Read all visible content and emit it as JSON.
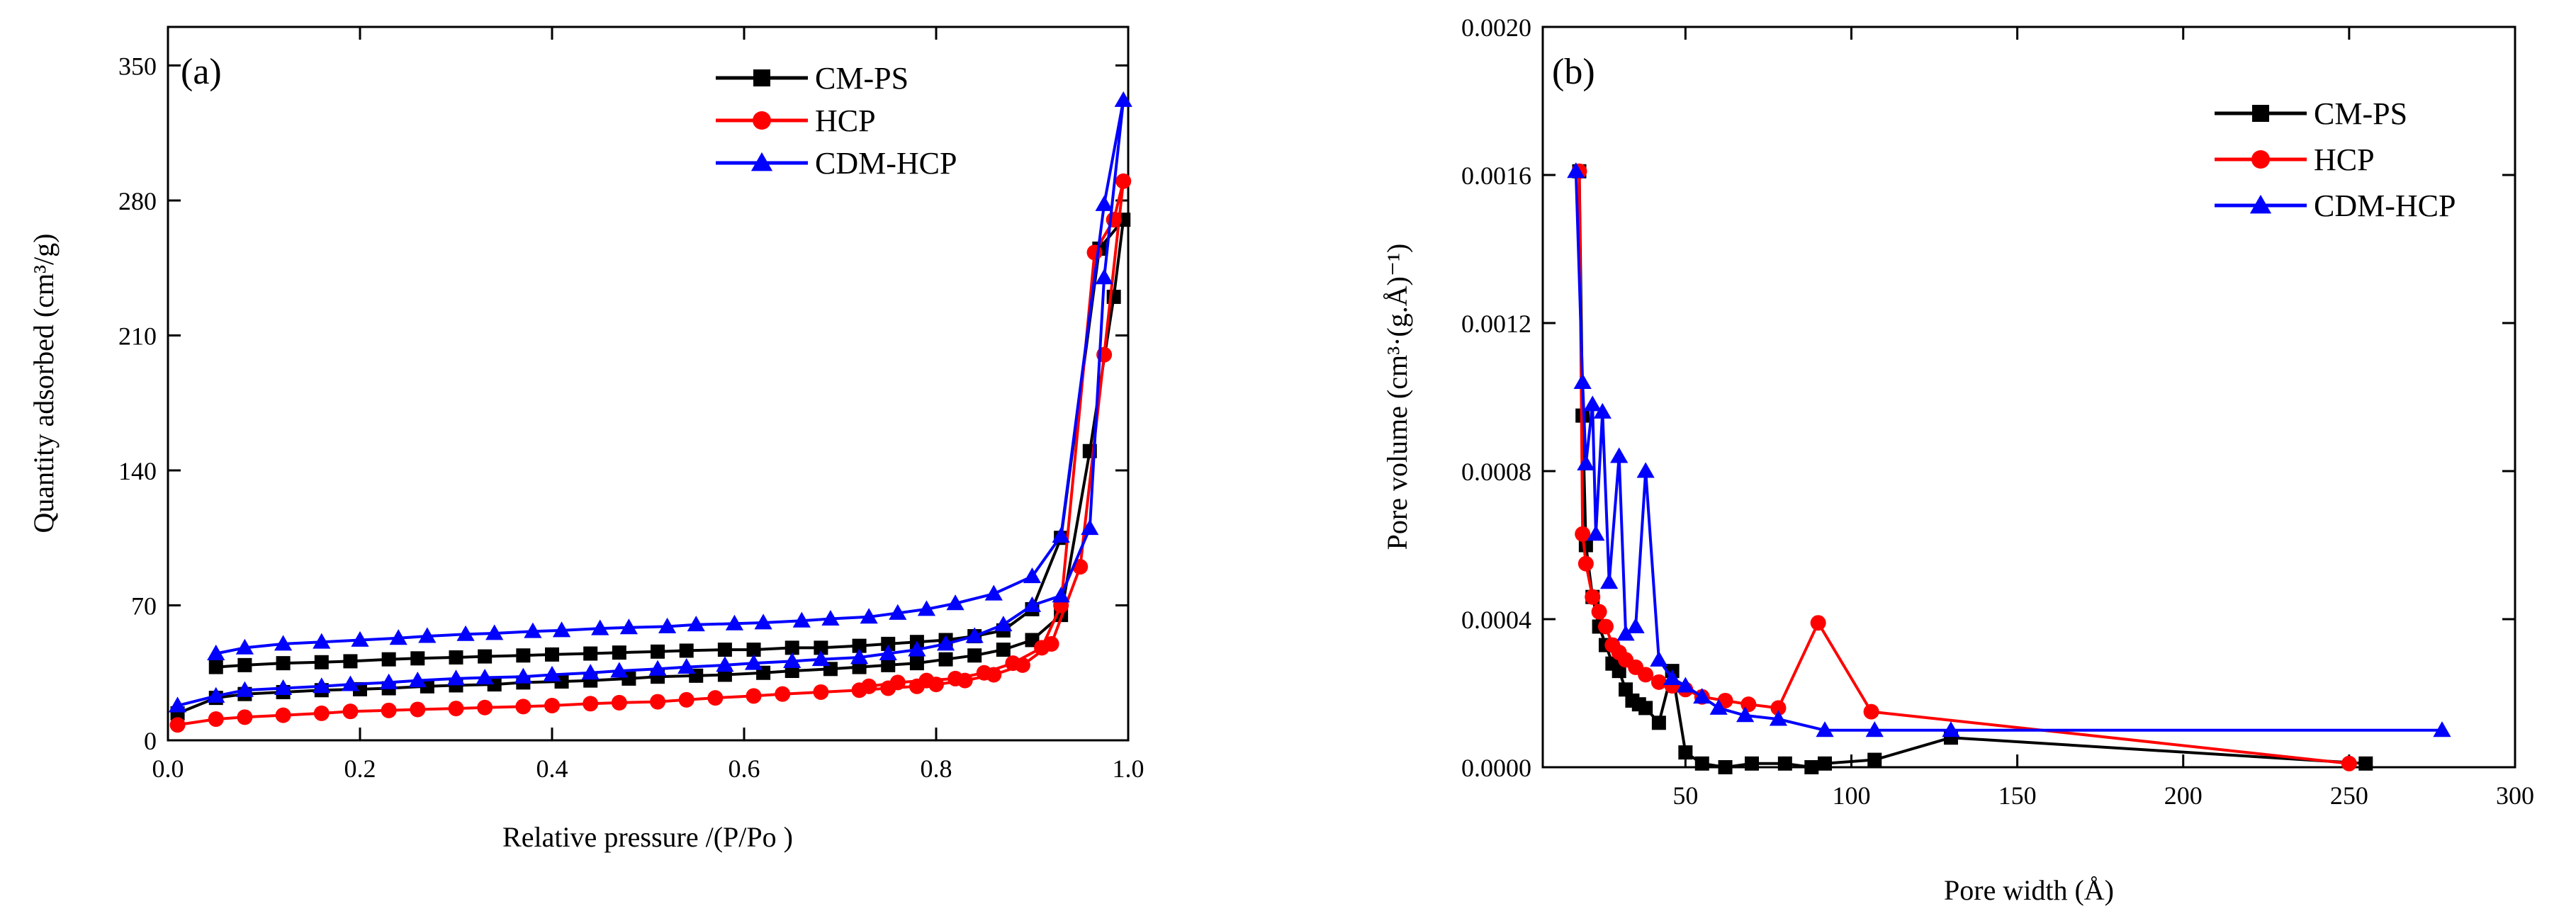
{
  "chart_data": [
    {
      "type": "line",
      "panel_label": "(a)",
      "xlabel": "Relative pressure /(P/Po )",
      "ylabel": "Quantity adsorbed (cm³/g)",
      "xlim": [
        0,
        1.0
      ],
      "ylim": [
        0,
        370
      ],
      "xticks": [
        0.0,
        0.2,
        0.4,
        0.6,
        0.8,
        1.0
      ],
      "xtick_labels": [
        "0.0",
        "0.2",
        "0.4",
        "0.6",
        "0.8",
        "1.0"
      ],
      "yticks": [
        0,
        70,
        140,
        210,
        280,
        350
      ],
      "ytick_labels": [
        "0",
        "70",
        "140",
        "210",
        "280",
        "350"
      ],
      "legend_position": "top-right",
      "series": [
        {
          "name": "CM-PS",
          "color": "#000000",
          "marker": "square",
          "points": [
            [
              0.01,
              14
            ],
            [
              0.05,
              22
            ],
            [
              0.08,
              24
            ],
            [
              0.12,
              25
            ],
            [
              0.16,
              26
            ],
            [
              0.2,
              26.5
            ],
            [
              0.23,
              27
            ],
            [
              0.27,
              28
            ],
            [
              0.3,
              28.5
            ],
            [
              0.34,
              29
            ],
            [
              0.37,
              30
            ],
            [
              0.41,
              30.5
            ],
            [
              0.44,
              31
            ],
            [
              0.48,
              32
            ],
            [
              0.51,
              33
            ],
            [
              0.55,
              33.5
            ],
            [
              0.58,
              34
            ],
            [
              0.62,
              35
            ],
            [
              0.65,
              36
            ],
            [
              0.69,
              37
            ],
            [
              0.72,
              38
            ],
            [
              0.75,
              39
            ],
            [
              0.78,
              40
            ],
            [
              0.81,
              42
            ],
            [
              0.84,
              44
            ],
            [
              0.87,
              47
            ],
            [
              0.9,
              52
            ],
            [
              0.93,
              65
            ],
            [
              0.96,
              150
            ],
            [
              0.985,
              230
            ],
            [
              0.995,
              270
            ],
            [
              0.97,
              255
            ],
            [
              0.93,
              105
            ],
            [
              0.9,
              68
            ],
            [
              0.87,
              57
            ],
            [
              0.84,
              54
            ],
            [
              0.81,
              52
            ],
            [
              0.78,
              51
            ],
            [
              0.75,
              50
            ],
            [
              0.72,
              49
            ],
            [
              0.68,
              48
            ],
            [
              0.65,
              48
            ],
            [
              0.61,
              47
            ],
            [
              0.58,
              47
            ],
            [
              0.54,
              46.5
            ],
            [
              0.51,
              46
            ],
            [
              0.47,
              45.5
            ],
            [
              0.44,
              45
            ],
            [
              0.4,
              44.5
            ],
            [
              0.37,
              44
            ],
            [
              0.33,
              43.5
            ],
            [
              0.3,
              43
            ],
            [
              0.26,
              42.5
            ],
            [
              0.23,
              42
            ],
            [
              0.19,
              41
            ],
            [
              0.16,
              40.5
            ],
            [
              0.12,
              40
            ],
            [
              0.08,
              39
            ],
            [
              0.05,
              38
            ]
          ]
        },
        {
          "name": "HCP",
          "color": "#ff0000",
          "marker": "circle",
          "points": [
            [
              0.01,
              8
            ],
            [
              0.05,
              11
            ],
            [
              0.08,
              12
            ],
            [
              0.12,
              13
            ],
            [
              0.16,
              14
            ],
            [
              0.19,
              15
            ],
            [
              0.23,
              15.5
            ],
            [
              0.26,
              16
            ],
            [
              0.3,
              16.5
            ],
            [
              0.33,
              17
            ],
            [
              0.37,
              17.5
            ],
            [
              0.4,
              18
            ],
            [
              0.44,
              19
            ],
            [
              0.47,
              19.5
            ],
            [
              0.51,
              20
            ],
            [
              0.54,
              21
            ],
            [
              0.57,
              22
            ],
            [
              0.61,
              23
            ],
            [
              0.64,
              24
            ],
            [
              0.68,
              25
            ],
            [
              0.72,
              26
            ],
            [
              0.75,
              27
            ],
            [
              0.78,
              28
            ],
            [
              0.8,
              29
            ],
            [
              0.83,
              31
            ],
            [
              0.86,
              34
            ],
            [
              0.89,
              39
            ],
            [
              0.92,
              50
            ],
            [
              0.95,
              90
            ],
            [
              0.975,
              200
            ],
            [
              0.995,
              290
            ],
            [
              0.985,
              270
            ],
            [
              0.965,
              253
            ],
            [
              0.93,
              70
            ],
            [
              0.91,
              48
            ],
            [
              0.88,
              40
            ],
            [
              0.85,
              35
            ],
            [
              0.82,
              32
            ],
            [
              0.79,
              31
            ],
            [
              0.76,
              30
            ],
            [
              0.73,
              28
            ]
          ]
        },
        {
          "name": "CDM-HCP",
          "color": "#0000ff",
          "marker": "triangle",
          "points": [
            [
              0.01,
              18
            ],
            [
              0.05,
              23
            ],
            [
              0.08,
              26
            ],
            [
              0.12,
              27
            ],
            [
              0.16,
              28
            ],
            [
              0.19,
              29
            ],
            [
              0.23,
              30
            ],
            [
              0.26,
              31
            ],
            [
              0.3,
              32
            ],
            [
              0.33,
              32.5
            ],
            [
              0.37,
              33
            ],
            [
              0.4,
              34
            ],
            [
              0.44,
              35
            ],
            [
              0.47,
              36
            ],
            [
              0.51,
              37
            ],
            [
              0.54,
              38
            ],
            [
              0.58,
              39
            ],
            [
              0.61,
              40
            ],
            [
              0.65,
              41
            ],
            [
              0.68,
              42
            ],
            [
              0.72,
              43
            ],
            [
              0.75,
              45
            ],
            [
              0.78,
              47
            ],
            [
              0.81,
              50
            ],
            [
              0.84,
              54
            ],
            [
              0.87,
              60
            ],
            [
              0.9,
              70
            ],
            [
              0.93,
              75
            ],
            [
              0.96,
              110
            ],
            [
              0.975,
              240
            ],
            [
              0.995,
              332
            ],
            [
              0.975,
              278
            ],
            [
              0.93,
              106
            ],
            [
              0.9,
              85
            ],
            [
              0.86,
              76
            ],
            [
              0.82,
              71
            ],
            [
              0.79,
              68
            ],
            [
              0.76,
              66
            ],
            [
              0.73,
              64
            ],
            [
              0.69,
              63
            ],
            [
              0.66,
              62
            ],
            [
              0.62,
              61
            ],
            [
              0.59,
              60.5
            ],
            [
              0.55,
              60
            ],
            [
              0.52,
              59
            ],
            [
              0.48,
              58.5
            ],
            [
              0.45,
              58
            ],
            [
              0.41,
              57
            ],
            [
              0.38,
              56.5
            ],
            [
              0.34,
              55.5
            ],
            [
              0.31,
              55
            ],
            [
              0.27,
              54
            ],
            [
              0.24,
              53
            ],
            [
              0.2,
              52
            ],
            [
              0.16,
              51
            ],
            [
              0.12,
              50
            ],
            [
              0.08,
              48
            ],
            [
              0.05,
              45
            ]
          ]
        }
      ]
    },
    {
      "type": "line",
      "panel_label": "(b)",
      "xlabel": "Pore width (Å)",
      "ylabel": "Pore volume (cm³·(g.Å)⁻¹)",
      "xlim": [
        7,
        300
      ],
      "ylim": [
        0,
        0.002
      ],
      "xticks": [
        50,
        100,
        150,
        200,
        250,
        300
      ],
      "xtick_labels": [
        "50",
        "100",
        "150",
        "200",
        "250",
        "300"
      ],
      "yticks": [
        0,
        0.0004,
        0.0008,
        0.0012,
        0.0016,
        0.002
      ],
      "ytick_labels": [
        "0.0000",
        "0.0004",
        "0.0008",
        "0.0012",
        "0.0016",
        "0.0020"
      ],
      "legend_position": "top-right",
      "series": [
        {
          "name": "CM-PS",
          "color": "#000000",
          "marker": "square",
          "points": [
            [
              18,
              0.00161
            ],
            [
              19,
              0.00095
            ],
            [
              20,
              0.0006
            ],
            [
              22,
              0.00046
            ],
            [
              24,
              0.00038
            ],
            [
              26,
              0.00033
            ],
            [
              28,
              0.00028
            ],
            [
              30,
              0.00026
            ],
            [
              32,
              0.00021
            ],
            [
              34,
              0.00018
            ],
            [
              36,
              0.00017
            ],
            [
              38,
              0.00016
            ],
            [
              42,
              0.00012
            ],
            [
              46,
              0.00026
            ],
            [
              50,
              4e-05
            ],
            [
              55,
              1e-05
            ],
            [
              62,
              0.0
            ],
            [
              70,
              1e-05
            ],
            [
              80,
              1e-05
            ],
            [
              88,
              0.0
            ],
            [
              92,
              1e-05
            ],
            [
              107,
              2e-05
            ],
            [
              130,
              8e-05
            ],
            [
              255,
              1e-05
            ]
          ]
        },
        {
          "name": "HCP",
          "color": "#ff0000",
          "marker": "circle",
          "points": [
            [
              18,
              0.00161
            ],
            [
              19,
              0.00063
            ],
            [
              20,
              0.00055
            ],
            [
              22,
              0.00046
            ],
            [
              24,
              0.00042
            ],
            [
              26,
              0.00038
            ],
            [
              28,
              0.00033
            ],
            [
              30,
              0.00031
            ],
            [
              32,
              0.00029
            ],
            [
              35,
              0.00027
            ],
            [
              38,
              0.00025
            ],
            [
              42,
              0.00023
            ],
            [
              46,
              0.00022
            ],
            [
              50,
              0.00021
            ],
            [
              55,
              0.00019
            ],
            [
              62,
              0.00018
            ],
            [
              69,
              0.00017
            ],
            [
              78,
              0.00016
            ],
            [
              90,
              0.00039
            ],
            [
              106,
              0.00015
            ],
            [
              250,
              1e-05
            ]
          ]
        },
        {
          "name": "CDM-HCP",
          "color": "#0000ff",
          "marker": "triangle",
          "points": [
            [
              17,
              0.00161
            ],
            [
              19,
              0.00104
            ],
            [
              20,
              0.00082
            ],
            [
              22,
              0.00098
            ],
            [
              23,
              0.00063
            ],
            [
              25,
              0.00096
            ],
            [
              27,
              0.0005
            ],
            [
              30,
              0.00084
            ],
            [
              32,
              0.00036
            ],
            [
              35,
              0.00038
            ],
            [
              38,
              0.0008
            ],
            [
              42,
              0.00029
            ],
            [
              46,
              0.00024
            ],
            [
              50,
              0.00022
            ],
            [
              55,
              0.00019
            ],
            [
              60,
              0.00016
            ],
            [
              68,
              0.00014
            ],
            [
              78,
              0.00013
            ],
            [
              92,
              0.0001
            ],
            [
              107,
              0.0001
            ],
            [
              130,
              0.0001
            ],
            [
              278,
              0.0001
            ]
          ]
        }
      ]
    }
  ]
}
